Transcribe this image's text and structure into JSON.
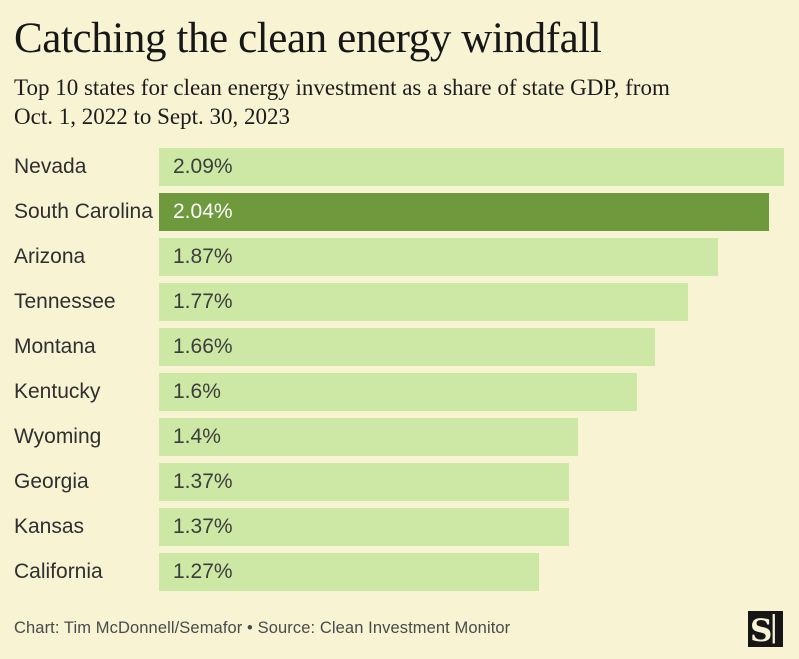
{
  "header": {
    "title": "Catching the clean energy windfall",
    "subtitle_lines": [
      "Top 10 states for clean energy investment as a share of state GDP, from",
      "Oct. 1, 2022 to Sept. 30, 2023"
    ]
  },
  "chart_data": {
    "type": "bar",
    "orientation": "horizontal",
    "title": "Catching the clean energy windfall",
    "subtitle": "Top 10 states for clean energy investment as a share of state GDP, from Oct. 1, 2022 to Sept. 30, 2023",
    "categories": [
      "Nevada",
      "South Carolina",
      "Arizona",
      "Tennessee",
      "Montana",
      "Kentucky",
      "Wyoming",
      "Georgia",
      "Kansas",
      "California"
    ],
    "values": [
      2.09,
      2.04,
      1.87,
      1.77,
      1.66,
      1.6,
      1.4,
      1.37,
      1.37,
      1.27
    ],
    "value_labels": [
      "2.09%",
      "2.04%",
      "1.87%",
      "1.77%",
      "1.66%",
      "1.6%",
      "1.4%",
      "1.37%",
      "1.37%",
      "1.27%"
    ],
    "highlighted_index": 1,
    "xlim": [
      0,
      2.09
    ],
    "grid": false,
    "legend": false,
    "colors": {
      "background": "#f7f3d3",
      "bar": "#cde8a4",
      "bar_highlight": "#6e993c",
      "category_text": "#2f2f2f",
      "value_text": "#3d3d3d",
      "value_text_on_highlight": "#ffffff",
      "title_text": "#171717",
      "footer_text": "#4a4a4a",
      "logo_background": "#161616"
    }
  },
  "footer": {
    "credit": "Chart: Tim McDonnell/Semafor • Source: Clean Investment Monitor",
    "logo_icon": "semafor-logo"
  }
}
